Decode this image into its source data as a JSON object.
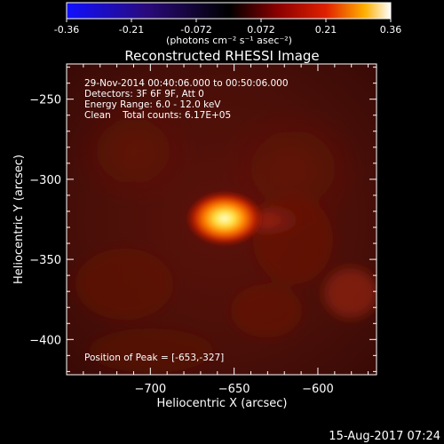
{
  "colorbar": {
    "ticks": [
      "-0.36",
      "-0.21",
      "-0.072",
      "0.072",
      "0.21",
      "0.36"
    ],
    "unit_label": "(photons cm⁻² s⁻¹ asec⁻²)",
    "range": [
      -0.36,
      0.36
    ]
  },
  "chart_data": {
    "type": "heatmap",
    "title": "Reconstructed RHESSI Image",
    "xlabel": "Heliocentric X (arcsec)",
    "ylabel": "Heliocentric Y (arcsec)",
    "xlim": [
      -750,
      -565
    ],
    "ylim": [
      -422,
      -228
    ],
    "x_ticks": [
      -700,
      -650,
      -600
    ],
    "y_ticks": [
      -250,
      -300,
      -350,
      -400
    ],
    "x_tick_labels": [
      "−700",
      "−650",
      "−600"
    ],
    "y_tick_labels": [
      "−250",
      "−300",
      "−350",
      "−400"
    ],
    "colorscale": "hot (blue-black-red-yellow-white)",
    "peak": {
      "x": -653,
      "y": -327,
      "value": 0.36
    },
    "annotations": [
      "29-Nov-2014 00:40:06.000 to 00:50:06.000",
      "Detectors: 3F 6F 9F, Att 0",
      "Energy Range: 6.0 - 12.0 keV",
      "Clean    Total counts: 6.17E+05",
      "Position of Peak = [-653,-327]"
    ]
  },
  "footer_timestamp": "15-Aug-2017 07:24"
}
